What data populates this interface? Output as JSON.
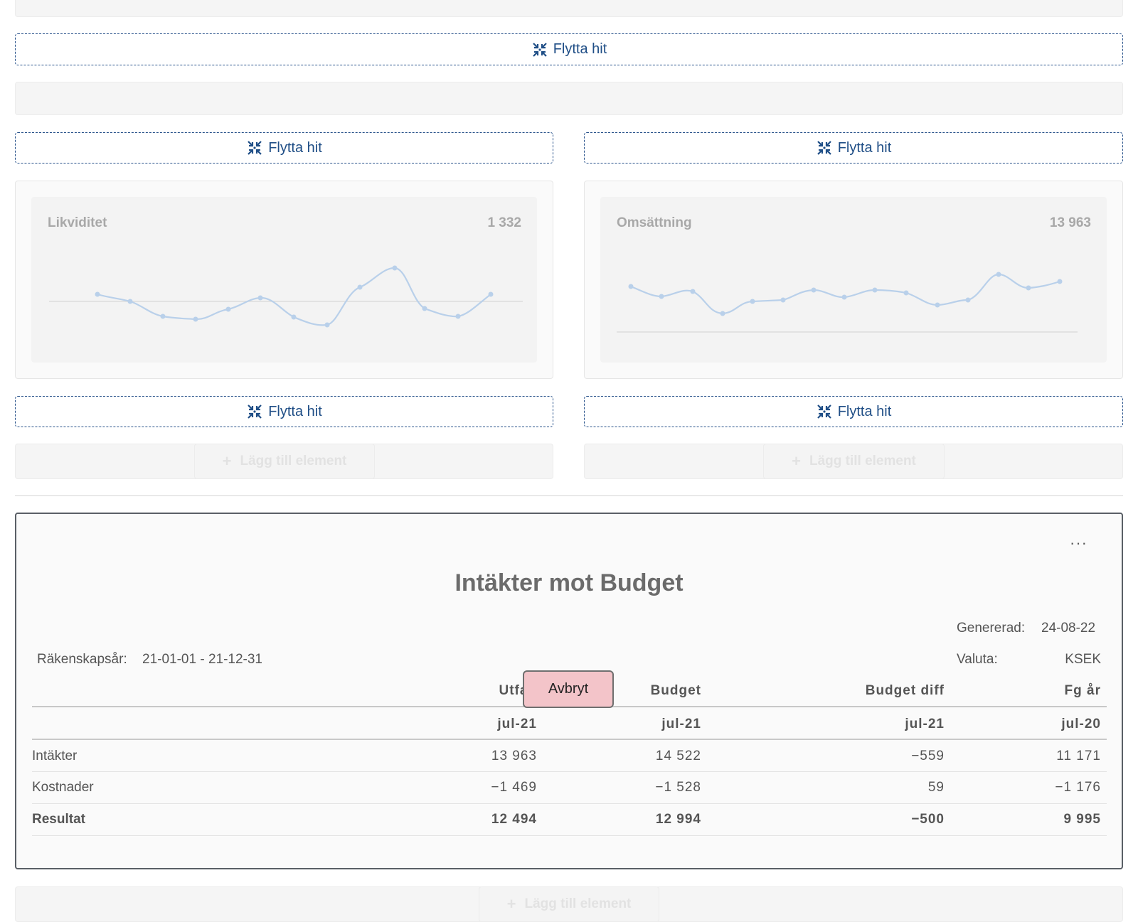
{
  "drop_zone_label": "Flytta hit",
  "add_element_label": "Lägg till element",
  "widgets": {
    "liquidity": {
      "title": "Likviditet",
      "value": "1 332"
    },
    "revenue": {
      "title": "Omsättning",
      "value": "13 963"
    }
  },
  "report": {
    "menu": "···",
    "title": "Intäkter mot Budget",
    "generated_label": "Genererad:",
    "generated_value": "24-08-22",
    "fiscal_label": "Räkenskapsår:",
    "fiscal_value": "21-01-01 - 21-12-31",
    "currency_label": "Valuta:",
    "currency_value": "KSEK",
    "columns": [
      "Utfall",
      "Budget",
      "Budget diff",
      "Fg år"
    ],
    "periods": [
      "jul-21",
      "jul-21",
      "jul-21",
      "jul-20"
    ],
    "rows": [
      {
        "label": "Intäkter",
        "values": [
          "13 963",
          "14 522",
          "−559",
          "11 171"
        ]
      },
      {
        "label": "Kostnader",
        "values": [
          "−1 469",
          "−1 528",
          "59",
          "−1 176"
        ]
      },
      {
        "label": "Resultat",
        "values": [
          "12 494",
          "12 994",
          "−500",
          "9 995"
        ]
      }
    ]
  },
  "cancel_label": "Avbryt",
  "colors": {
    "accent": "#1f4e86",
    "cancel_bg": "#f3c4c9",
    "sparkline": "#b9d0ea"
  }
}
